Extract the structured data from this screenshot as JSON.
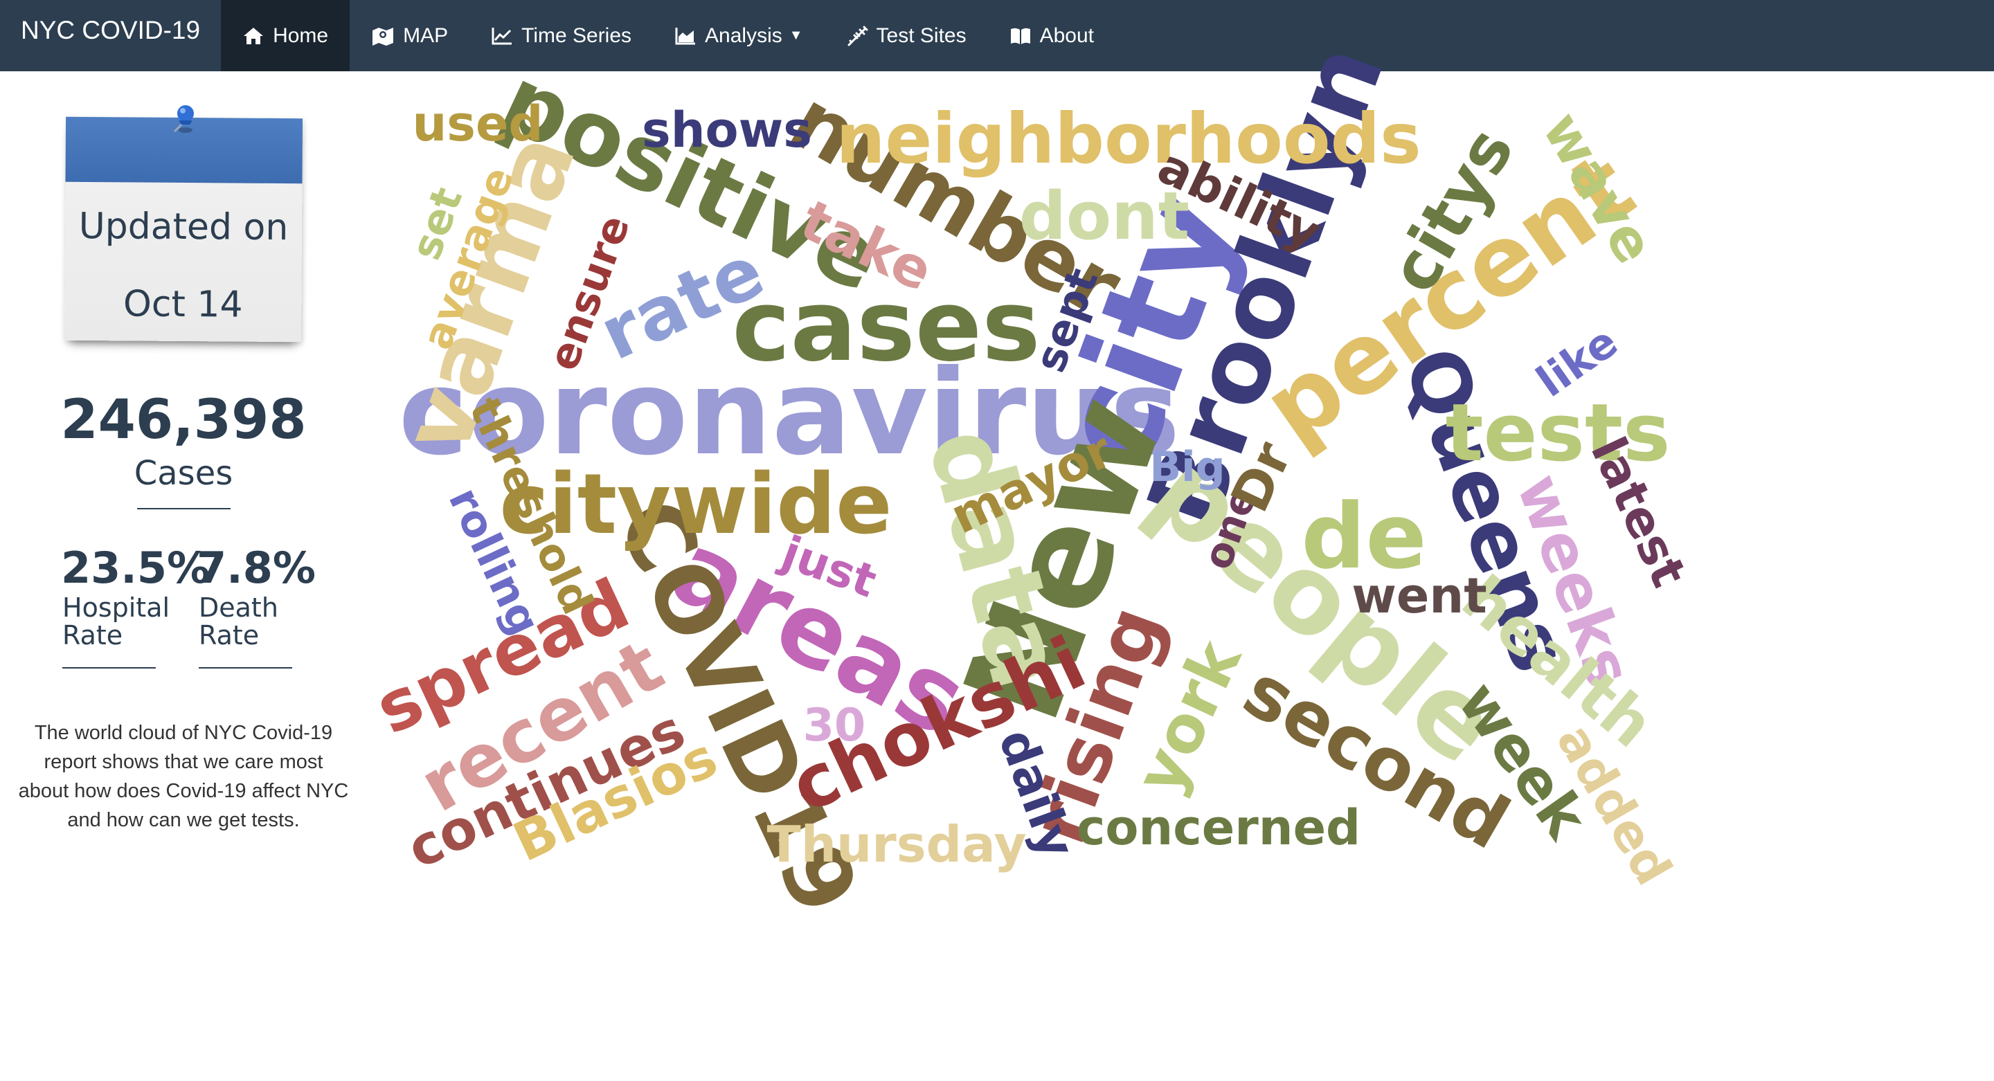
{
  "navbar": {
    "brand": "NYC COVID-19",
    "items": [
      {
        "label": "Home",
        "icon": "home-icon"
      },
      {
        "label": "MAP",
        "icon": "map-icon"
      },
      {
        "label": "Time Series",
        "icon": "line-chart-icon"
      },
      {
        "label": "Analysis",
        "icon": "area-chart-icon"
      },
      {
        "label": "Test Sites",
        "icon": "syringe-icon"
      },
      {
        "label": "About",
        "icon": "book-icon"
      }
    ],
    "active": "Home"
  },
  "sidebar": {
    "note_line1": "Updated on",
    "note_line2": "Oct 14",
    "cases_value": "246,398",
    "cases_label": "Cases",
    "hospital_value": "23.5%",
    "hospital_label_1": "Hospital",
    "hospital_label_2": "Rate",
    "death_value": "7.8%",
    "death_label_1": "Death",
    "death_label_2": "Rate",
    "description": "The world cloud of NYC Covid-19 report shows that we care most about how does Covid-19 affect NYC and how can we get tests."
  },
  "colors": {
    "navbar": "#2c3e50",
    "navbar_active": "#1a242f",
    "note_band": "#4a78bd",
    "text": "#2c3e50"
  },
  "word_cloud": {
    "words": [
      "coronavirus",
      "city",
      "Brooklyn",
      "New",
      "cases",
      "positive",
      "number",
      "percent",
      "people",
      "data",
      "areas",
      "COVID19",
      "citywide",
      "neighborhoods",
      "varma",
      "Queens",
      "tests",
      "de",
      "rising",
      "second",
      "weeks",
      "health",
      "week",
      "recent",
      "spread",
      "chokshi",
      "Thursday",
      "continues",
      "Blasios",
      "concerned",
      "dont",
      "rate",
      "take",
      "shows",
      "used",
      "wave",
      "citys",
      "ability",
      "latest",
      "went",
      "york",
      "added",
      "daily",
      "mayor",
      "rolling",
      "threshold",
      "average",
      "ensure",
      "set",
      "sept",
      "like",
      "just",
      "30",
      "Big",
      "one",
      "Dr"
    ]
  }
}
